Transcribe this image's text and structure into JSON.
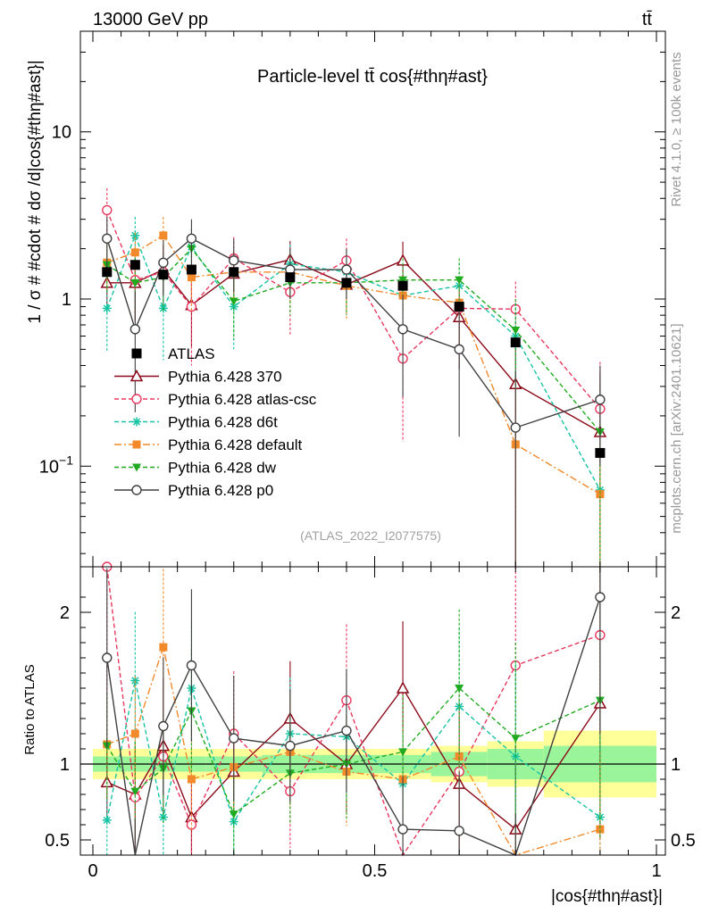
{
  "header": {
    "left": "13000 GeV pp",
    "right": "tt̄"
  },
  "side_labels": {
    "rivet": "Rivet 4.1.0, ≥ 100k events",
    "mcplots": "mcplots.cern.ch [arXiv:2401.10621]"
  },
  "chart_data": {
    "type": "line",
    "title": "Particle-level tt̄ cos{#thη#ast}",
    "xlabel": "|cos{#thη#ast}|",
    "ylabel": "1 / σ # #cdot # dσ /d|cos{#thη#ast}|",
    "ratio_ylabel": "Ratio to ATLAS",
    "analysis_id": "(ATLAS_2022_I2077575)",
    "xlim": [
      0,
      1
    ],
    "ylim": [
      0.025,
      40
    ],
    "yscale": "log",
    "ratio_ylim": [
      0.4,
      2.3
    ],
    "x_ticks": [
      "0",
      "0.5",
      "1"
    ],
    "y_ticks": [
      "10^-1",
      "1",
      "10"
    ],
    "ratio_ticks": [
      "0.5",
      "1",
      "2"
    ],
    "bins": [
      0.025,
      0.075,
      0.125,
      0.175,
      0.25,
      0.35,
      0.45,
      0.55,
      0.65,
      0.75,
      0.9
    ],
    "data": {
      "name": "ATLAS",
      "values": [
        1.45,
        1.6,
        1.4,
        1.5,
        1.45,
        1.35,
        1.25,
        1.2,
        0.9,
        0.55,
        0.12
      ],
      "band_stat": [
        0.05,
        0.05,
        0.05,
        0.05,
        0.05,
        0.06,
        0.06,
        0.06,
        0.08,
        0.1,
        0.12
      ],
      "band_total": [
        0.1,
        0.1,
        0.1,
        0.1,
        0.1,
        0.1,
        0.1,
        0.1,
        0.12,
        0.15,
        0.22
      ]
    },
    "series": [
      {
        "name": "Pythia 6.428 370",
        "color": "#8b0a1a",
        "dash": "",
        "marker": "triangle-open",
        "values": [
          1.25,
          1.25,
          1.5,
          0.92,
          1.42,
          1.72,
          1.22,
          1.7,
          0.78,
          0.31,
          0.16
        ],
        "errors": [
          0.35,
          0.5,
          0.6,
          0.4,
          0.45,
          0.5,
          0.4,
          0.5,
          0.4,
          0.3,
          0.2
        ]
      },
      {
        "name": "Pythia 6.428 atlas-csc",
        "color": "#e8385f",
        "dash": "5,3",
        "marker": "circle-open",
        "values": [
          3.4,
          1.3,
          1.45,
          0.9,
          1.75,
          1.1,
          1.7,
          0.44,
          0.88,
          0.87,
          0.22
        ],
        "errors": [
          1.2,
          0.6,
          0.6,
          0.5,
          0.6,
          0.5,
          0.6,
          0.3,
          0.4,
          0.4,
          0.2
        ]
      },
      {
        "name": "Pythia 6.428 d6t",
        "color": "#17c4a3",
        "dash": "5,3",
        "marker": "star",
        "values": [
          0.88,
          2.4,
          0.88,
          2.05,
          0.9,
          1.62,
          1.45,
          1.05,
          1.2,
          0.6,
          0.072
        ],
        "errors": [
          0.4,
          0.7,
          0.45,
          0.6,
          0.4,
          0.5,
          0.5,
          0.4,
          0.45,
          0.35,
          0.06
        ]
      },
      {
        "name": "Pythia 6.428 default",
        "color": "#f28a2c",
        "dash": "8,3,2,3",
        "marker": "square",
        "values": [
          1.65,
          1.9,
          2.4,
          1.35,
          1.45,
          1.45,
          1.2,
          1.05,
          0.95,
          0.135,
          0.068
        ],
        "errors": [
          0.5,
          0.6,
          0.7,
          0.5,
          0.5,
          0.5,
          0.45,
          0.4,
          0.4,
          0.2,
          0.06
        ]
      },
      {
        "name": "Pythia 6.428 dw",
        "color": "#1faa1f",
        "dash": "5,3",
        "marker": "triangle-down",
        "values": [
          1.6,
          1.25,
          1.35,
          2.0,
          0.97,
          1.25,
          1.25,
          1.3,
          1.3,
          0.65,
          0.16
        ],
        "errors": [
          0.5,
          0.5,
          0.5,
          0.6,
          0.4,
          0.45,
          0.45,
          0.45,
          0.45,
          0.35,
          0.15
        ]
      },
      {
        "name": "Pythia 6.428 p0",
        "color": "#404040",
        "dash": "",
        "marker": "circle-open",
        "values": [
          2.3,
          0.66,
          1.65,
          2.3,
          1.7,
          1.5,
          1.5,
          0.66,
          0.5,
          0.17,
          0.25
        ],
        "errors": [
          0.8,
          0.45,
          0.6,
          0.7,
          0.6,
          0.5,
          0.5,
          0.4,
          0.35,
          0.2,
          0.15
        ]
      }
    ],
    "ratios": [
      [
        0.88,
        0.8,
        1.12,
        0.65,
        0.95,
        1.3,
        1.0,
        1.5,
        0.87,
        0.57,
        1.4
      ],
      [
        2.3,
        0.78,
        1.05,
        0.6,
        1.2,
        0.82,
        1.42,
        0.35,
        0.95,
        1.65,
        1.85
      ],
      [
        0.63,
        1.55,
        0.65,
        1.5,
        0.62,
        1.2,
        1.18,
        0.87,
        1.38,
        1.05,
        0.65
      ],
      [
        1.13,
        1.2,
        1.77,
        0.9,
        0.98,
        1.08,
        0.95,
        0.9,
        1.05,
        0.25,
        0.57
      ],
      [
        1.12,
        0.82,
        0.97,
        1.35,
        0.67,
        0.94,
        1.0,
        1.08,
        1.5,
        1.17,
        1.42
      ],
      [
        1.7,
        0.38,
        1.25,
        1.65,
        1.17,
        1.12,
        1.22,
        0.57,
        0.56,
        0.31,
        2.1
      ]
    ]
  }
}
